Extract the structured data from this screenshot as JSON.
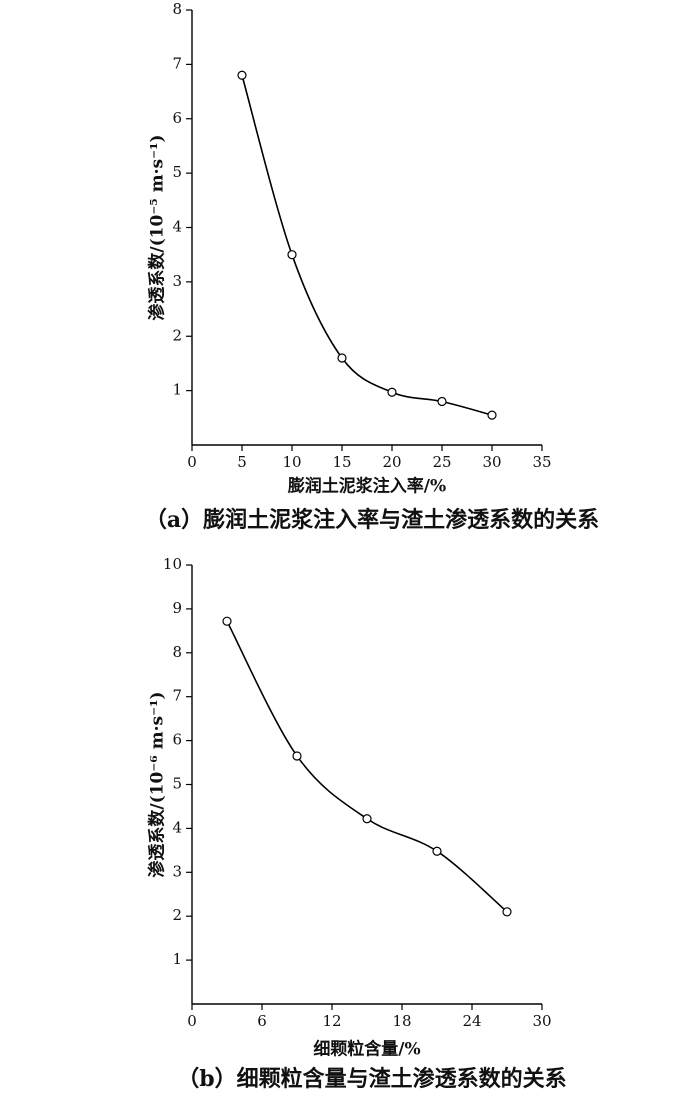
{
  "chart_data": [
    {
      "type": "line",
      "caption": "（a）膨润土泥浆注入率与渣土渗透系数的关系",
      "xlabel": "膨润土泥浆注入率/%",
      "ylabel": "渗透系数/(10⁻⁵ m·s⁻¹)",
      "x": [
        5,
        10,
        15,
        20,
        25,
        30
      ],
      "series": [
        {
          "color": "#000000",
          "values": [
            6.8,
            3.5,
            1.6,
            0.97,
            0.8,
            0.55
          ]
        }
      ],
      "xlim": [
        0,
        35
      ],
      "xticks": [
        0,
        5,
        10,
        15,
        20,
        25,
        30,
        35
      ],
      "ylim": [
        0,
        8
      ],
      "yticks": [
        1,
        2,
        3,
        4,
        5,
        6,
        7,
        8
      ]
    },
    {
      "type": "line",
      "caption": "（b）细颗粒含量与渣土渗透系数的关系",
      "xlabel": "细颗粒含量/%",
      "ylabel": "渗透系数/(10⁻⁶ m·s⁻¹)",
      "x": [
        3,
        9,
        15,
        21,
        27
      ],
      "series": [
        {
          "color": "#000000",
          "values": [
            8.72,
            5.65,
            4.22,
            3.48,
            2.1
          ]
        }
      ],
      "xlim": [
        0,
        30
      ],
      "xticks": [
        0,
        6,
        12,
        18,
        24,
        30
      ],
      "ylim": [
        0,
        10
      ],
      "yticks": [
        1,
        2,
        3,
        4,
        5,
        6,
        7,
        8,
        9,
        10
      ]
    }
  ]
}
